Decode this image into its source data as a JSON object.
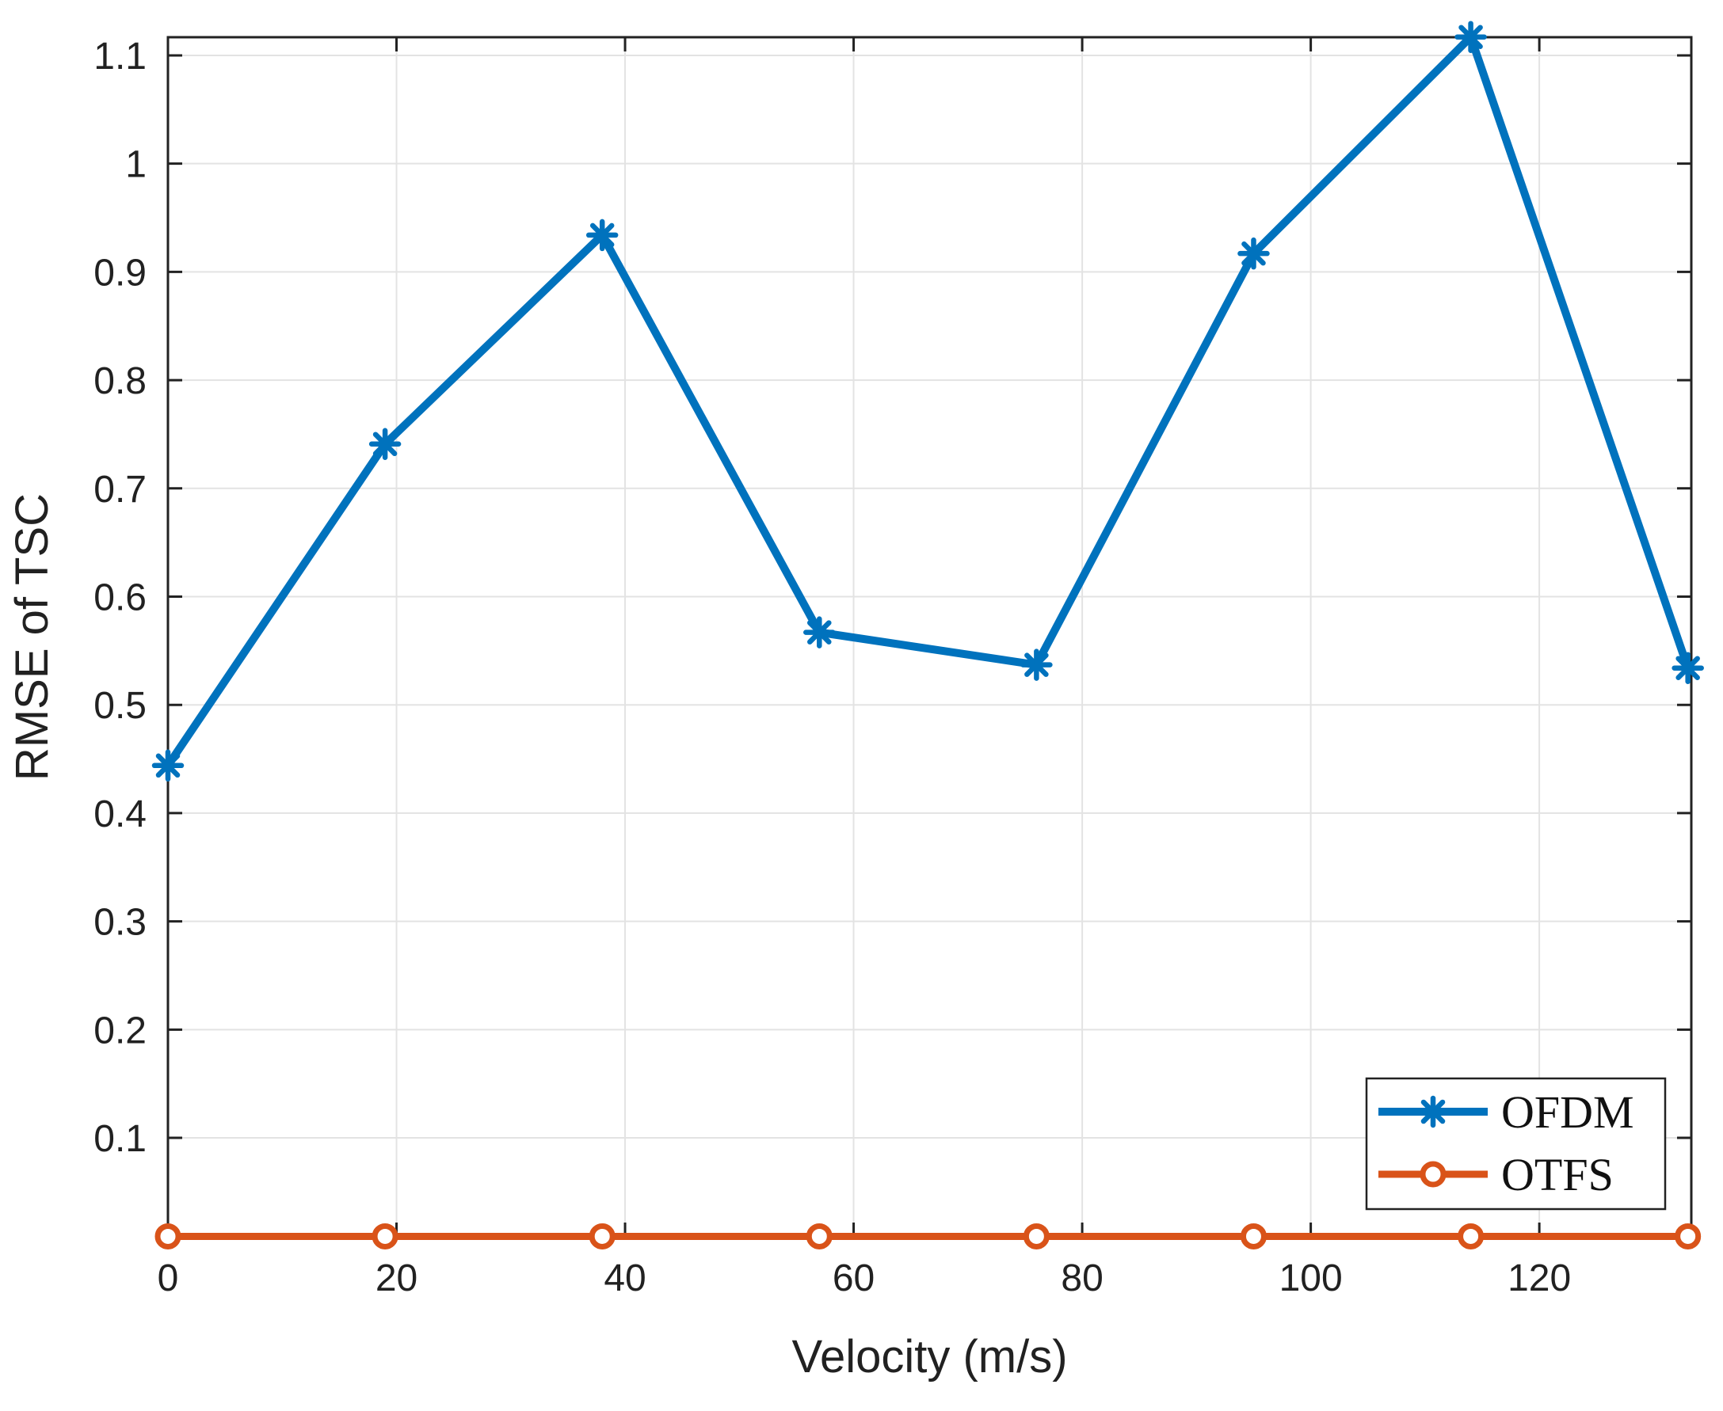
{
  "figure": {
    "background": "#ffffff",
    "axis_color": "#222222",
    "grid_color": "#e3e3e3",
    "text_color": "#212121"
  },
  "chart_data": {
    "type": "line",
    "title": "",
    "xlabel": "Velocity (m/s)",
    "ylabel": "RMSE of TSC",
    "x": [
      0,
      19,
      38,
      57,
      76,
      95,
      114,
      133
    ],
    "series": [
      {
        "name": "OFDM",
        "color": "#0072BD",
        "marker": "asterisk",
        "values": [
          0.444,
          0.741,
          0.934,
          0.567,
          0.537,
          0.917,
          1.117,
          0.534
        ]
      },
      {
        "name": "OTFS",
        "color": "#D95319",
        "marker": "circle",
        "values": [
          0.009,
          0.009,
          0.009,
          0.009,
          0.009,
          0.009,
          0.009,
          0.009
        ]
      }
    ],
    "xlim": [
      0,
      133.3
    ],
    "ylim": [
      0.0086,
      1.1168
    ],
    "xtick_values": [
      0,
      20,
      40,
      60,
      80,
      100,
      120
    ],
    "xtick_labels": [
      "0",
      "20",
      "40",
      "60",
      "80",
      "100",
      "120"
    ],
    "ytick_values": [
      0.1,
      0.2,
      0.3,
      0.4,
      0.5,
      0.6,
      0.7,
      0.8,
      0.9,
      1.0,
      1.1
    ],
    "ytick_labels": [
      "0.1",
      "0.2",
      "0.3",
      "0.4",
      "0.5",
      "0.6",
      "0.7",
      "0.8",
      "0.9",
      "1",
      "1.1"
    ],
    "grid": true,
    "legend_position": "bottom-right",
    "legend_labels": [
      "OFDM",
      "OTFS"
    ]
  }
}
